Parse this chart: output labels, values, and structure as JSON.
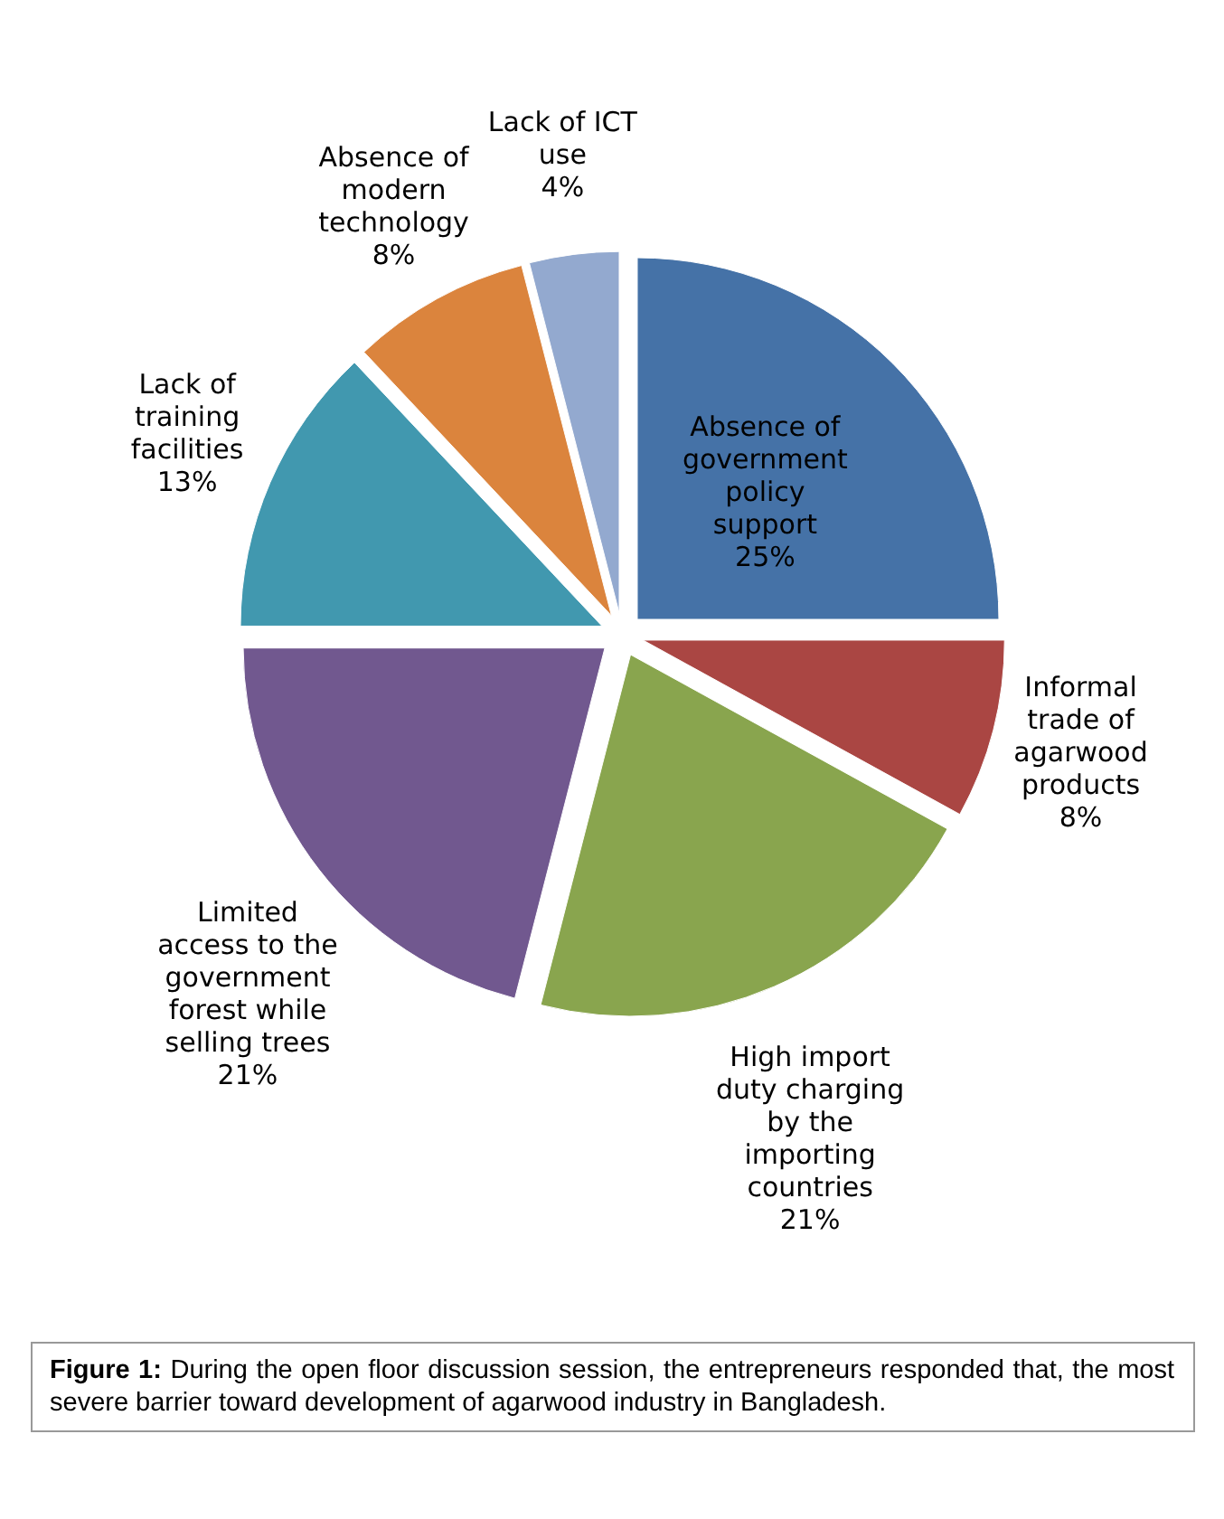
{
  "chart_data": {
    "type": "pie",
    "categories": [
      "Absence of government policy support",
      "Informal trade of agarwood products",
      "High import duty charging by the importing countries",
      "Limited access to the government forest while selling trees",
      "Lack of training facilities",
      "Absence of modern technology",
      "Lack of ICT use"
    ],
    "values": [
      25,
      8,
      21,
      21,
      13,
      8,
      4
    ],
    "colors": [
      "#4572a7",
      "#aa4643",
      "#89a54e",
      "#71588f",
      "#4198af",
      "#db843d",
      "#93a9cf"
    ],
    "value_labels": [
      "25%",
      "8%",
      "21%",
      "21%",
      "13%",
      "8%",
      "4%"
    ],
    "annotations": [
      "Figure 1: During the open floor discussion session, the entrepreneurs responded that, the most severe barrier toward development of agarwood industry in Bangladesh."
    ]
  }
}
